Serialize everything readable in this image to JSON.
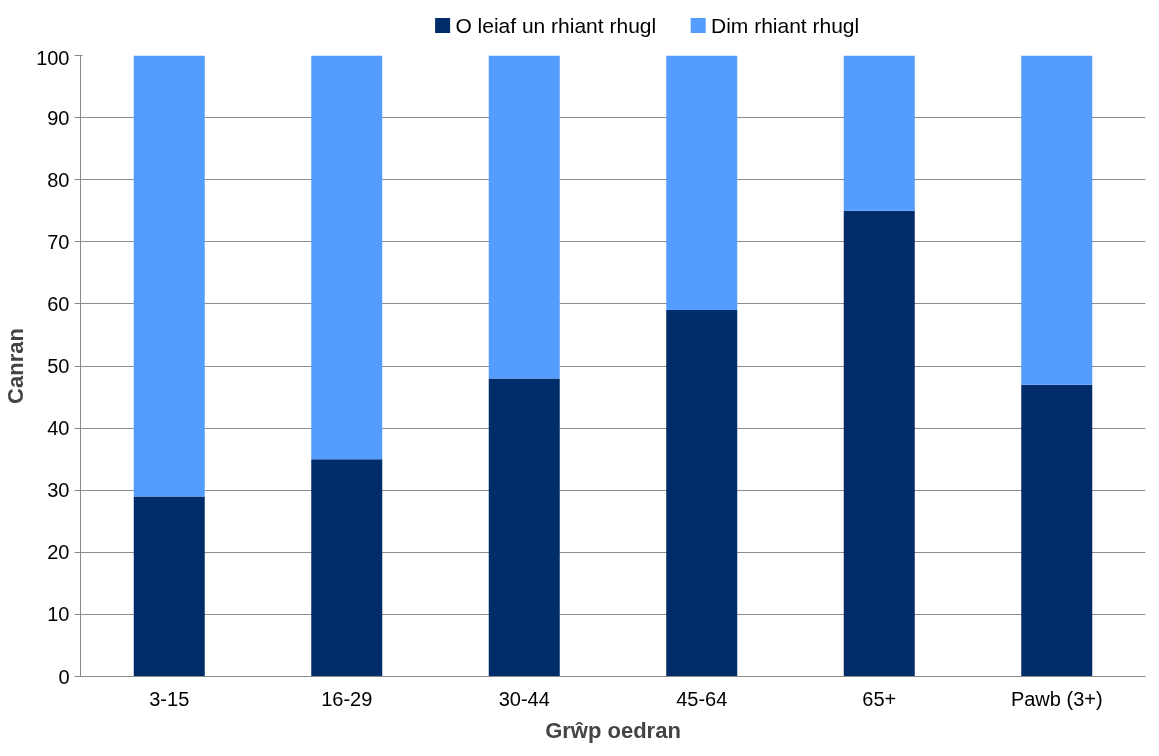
{
  "chart_data": {
    "type": "bar",
    "stacked": true,
    "xlabel": "Grŵp oedran",
    "ylabel": "Canran",
    "categories": [
      "3-15",
      "16-29",
      "30-44",
      "45-64",
      "65+",
      "Pawb (3+)"
    ],
    "series": [
      {
        "name": "O leiaf un rhiant rhugl",
        "color": "#002d6a",
        "values": [
          29,
          35,
          48,
          59,
          75,
          47
        ]
      },
      {
        "name": "Dim rhiant rhugl",
        "color": "#559cff",
        "values": [
          71,
          65,
          52,
          41,
          25,
          53
        ]
      }
    ],
    "ylim": [
      0,
      100
    ],
    "yticks": [
      0,
      10,
      20,
      30,
      40,
      50,
      60,
      70,
      80,
      90,
      100
    ],
    "grid": "y",
    "legend": "top"
  }
}
